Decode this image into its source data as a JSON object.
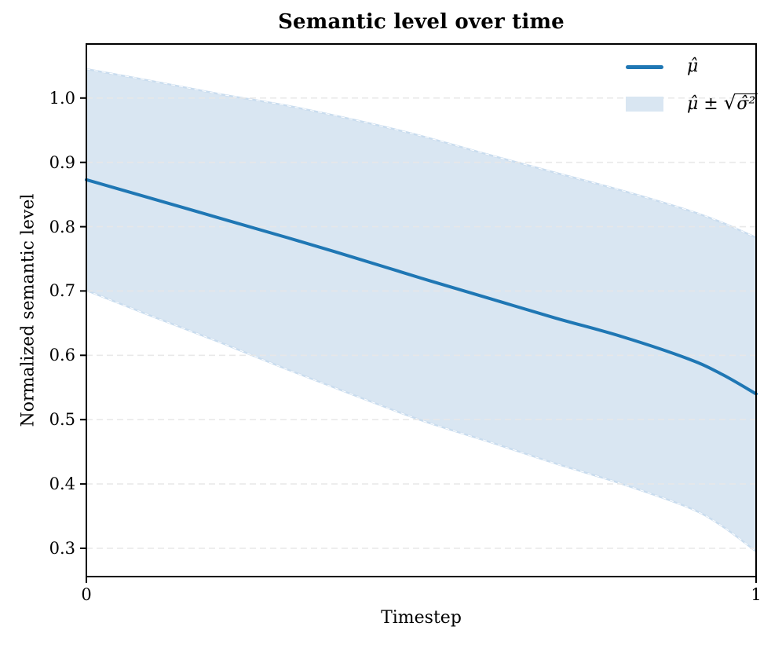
{
  "title": "Semantic level over time",
  "axes": {
    "xlabel": "Timestep",
    "ylabel": "Normalized semantic level",
    "xlim": [
      0,
      1
    ],
    "ylim": [
      0.256,
      1.084
    ],
    "x_ticks": [
      {
        "value": 0,
        "label": "0"
      },
      {
        "value": 1,
        "label": "1"
      }
    ],
    "y_ticks": [
      {
        "value": 0.3,
        "label": "0.3"
      },
      {
        "value": 0.4,
        "label": "0.4"
      },
      {
        "value": 0.5,
        "label": "0.5"
      },
      {
        "value": 0.6,
        "label": "0.6"
      },
      {
        "value": 0.7,
        "label": "0.7"
      },
      {
        "value": 0.8,
        "label": "0.8"
      },
      {
        "value": 0.9,
        "label": "0.9"
      },
      {
        "value": 1.0,
        "label": "1.0"
      }
    ],
    "grid": "horizontal dashed"
  },
  "legend": {
    "position": "upper right",
    "frame": false,
    "items": [
      {
        "type": "line",
        "label": "μ̂"
      },
      {
        "type": "patch",
        "label_prefix": "μ̂ ± ",
        "radical": "√",
        "radicand": "σ̂²"
      }
    ]
  },
  "palette": {
    "line": "#1f77b4",
    "band_fill": "#d9e6f2",
    "band_edge_outer": "#c9dcee",
    "band_edge_dash": "#ffffff",
    "grid": "#e8e8e8",
    "spine": "#000000",
    "text": "#000000",
    "background": "#ffffff"
  },
  "chart_data": {
    "type": "line",
    "title": "Semantic level over time",
    "xlabel": "Timestep",
    "ylabel": "Normalized semantic level",
    "xlim": [
      0,
      1
    ],
    "ylim": [
      0.256,
      1.084
    ],
    "x_tick_values": [
      0,
      1
    ],
    "y_tick_values": [
      0.3,
      0.4,
      0.5,
      0.6,
      0.7,
      0.8,
      0.9,
      1.0
    ],
    "grid": "horizontal dashed",
    "legend_position": "upper right",
    "x": [
      0,
      0.1,
      0.2,
      0.3,
      0.4,
      0.5,
      0.6,
      0.7,
      0.8,
      0.9,
      0.95,
      1.0
    ],
    "series": [
      {
        "name": "μ̂ (mean)",
        "color": "#1f77b4",
        "values": [
          0.873,
          0.843,
          0.813,
          0.783,
          0.752,
          0.72,
          0.689,
          0.658,
          0.629,
          0.594,
          0.57,
          0.54
        ]
      }
    ],
    "band": {
      "name": "μ̂ ± √(σ̂²)",
      "upper": [
        1.045,
        1.026,
        1.006,
        0.988,
        0.966,
        0.941,
        0.912,
        0.884,
        0.856,
        0.825,
        0.806,
        0.783
      ],
      "lower": [
        0.701,
        0.66,
        0.62,
        0.578,
        0.538,
        0.499,
        0.466,
        0.432,
        0.4,
        0.363,
        0.334,
        0.295
      ]
    }
  }
}
